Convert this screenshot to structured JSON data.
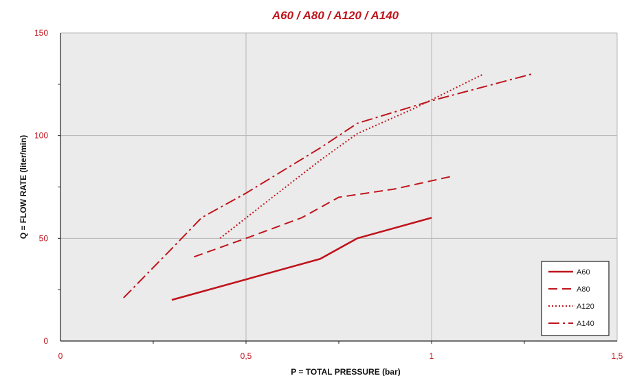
{
  "chart_data": {
    "type": "line",
    "title": "A60 / A80 / A120 / A140",
    "xlabel": "P = TOTAL PRESSURE (bar)",
    "ylabel": "Q = FLOW RATE (liter/min)",
    "xlim": [
      0,
      1.5
    ],
    "ylim": [
      0,
      150
    ],
    "x_ticks": [
      0,
      0.5,
      1,
      1.5
    ],
    "x_tick_labels": [
      "0",
      "0,5",
      "1",
      "1,5"
    ],
    "y_ticks": [
      0,
      50,
      100,
      150
    ],
    "y_tick_labels": [
      "0",
      "50",
      "100",
      "150"
    ],
    "grid": true,
    "legend_position": "bottom-right",
    "colors": {
      "series": "#c0141c",
      "plot_bg": "#ebebeb",
      "grid": "#b4b4b4",
      "title": "#c0141c"
    },
    "series": [
      {
        "name": "A60",
        "style": "solid",
        "x": [
          0.3,
          0.5,
          0.7,
          0.8,
          1.0
        ],
        "y": [
          20,
          30,
          40,
          50,
          60
        ]
      },
      {
        "name": "A80",
        "style": "dashed",
        "x": [
          0.36,
          0.5,
          0.65,
          0.75,
          0.9,
          1.05
        ],
        "y": [
          41,
          50,
          60,
          70,
          74,
          80
        ]
      },
      {
        "name": "A120",
        "style": "dotted",
        "x": [
          0.43,
          0.55,
          0.7,
          0.8,
          0.95,
          1.14
        ],
        "y": [
          50,
          67,
          88,
          101,
          113,
          130
        ]
      },
      {
        "name": "A140",
        "style": "dashdot",
        "x": [
          0.17,
          0.3,
          0.38,
          0.5,
          0.7,
          0.8,
          1.0,
          1.27
        ],
        "y": [
          21,
          45,
          60,
          72,
          94,
          106,
          117,
          130
        ]
      }
    ]
  }
}
